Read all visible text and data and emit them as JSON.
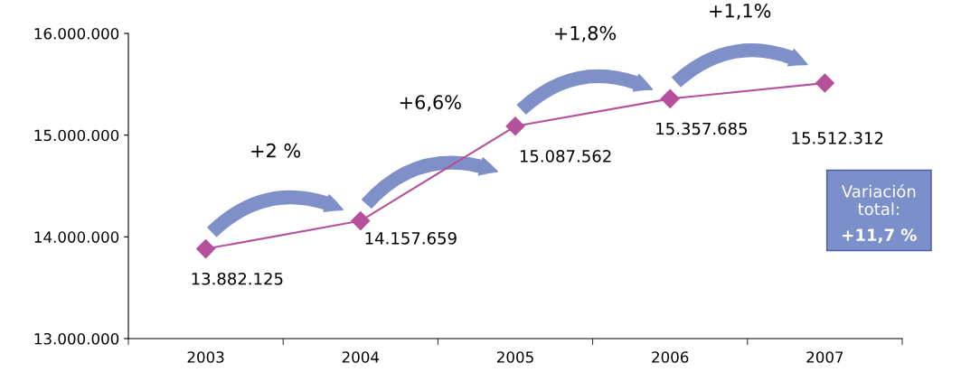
{
  "chart_data": {
    "type": "line",
    "categories": [
      "2003",
      "2004",
      "2005",
      "2006",
      "2007"
    ],
    "series": [
      {
        "color": "#b5509c",
        "values": [
          13882125,
          14157659,
          15087562,
          15357685,
          15512312
        ],
        "value_labels": [
          "13.882.125",
          "14.157.659",
          "15.087.562",
          "15.357.685",
          "15.512.312"
        ]
      }
    ],
    "ylim": [
      13000000,
      16000000
    ],
    "yticks": [
      {
        "value": 13000000,
        "label": "13.000.000"
      },
      {
        "value": 14000000,
        "label": "14.000.000"
      },
      {
        "value": 15000000,
        "label": "15.000.000"
      },
      {
        "value": 16000000,
        "label": "16.000.000"
      }
    ],
    "marker": "diamond",
    "line_style": "solid",
    "grid": false,
    "legend": false,
    "annotations": [
      "+2 %",
      "+6,6%",
      "+1,8%",
      "+1,1%",
      "Variación\ntotal:",
      "+11,7 %"
    ]
  }
}
